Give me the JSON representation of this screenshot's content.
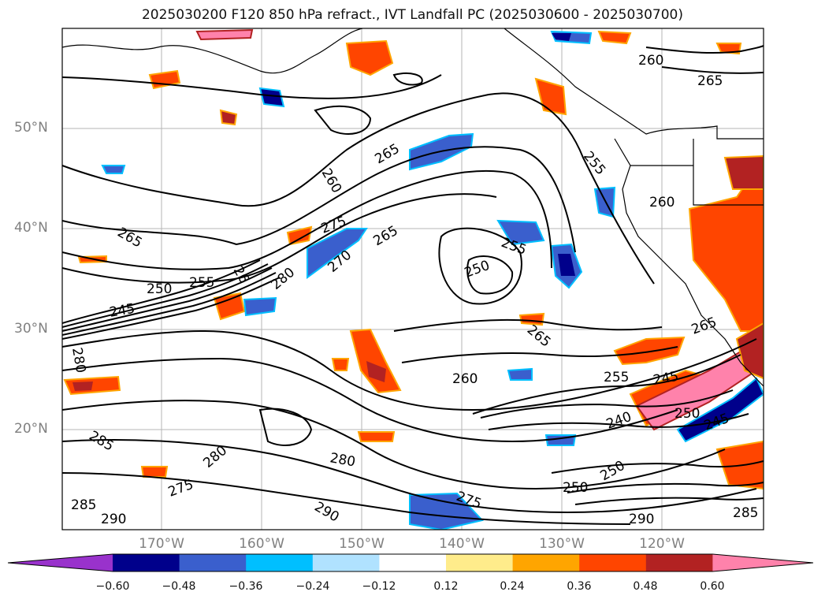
{
  "title": "2025030200 F120 850 hPa refract., IVT Landfall PC (2025030600 - 2025030700)",
  "latitude_labels": [
    "50°N",
    "40°N",
    "30°N",
    "20°N"
  ],
  "longitude_labels": [
    "170°W",
    "160°W",
    "150°W",
    "140°W",
    "130°W",
    "120°W"
  ],
  "colorbar": {
    "ticks": [
      "−0.60",
      "−0.48",
      "−0.36",
      "−0.24",
      "−0.12",
      "0.12",
      "0.24",
      "0.36",
      "0.48",
      "0.60"
    ],
    "colors": [
      "#9932cc",
      "#00008b",
      "#3a5fcd",
      "#00bfff",
      "#b0e2ff",
      "#ffffff",
      "#ffec8b",
      "#ffa500",
      "#ff4500",
      "#b22222",
      "#ff82ab"
    ]
  },
  "contour_labels": [
    "260",
    "265",
    "260",
    "255",
    "265",
    "260",
    "265",
    "275",
    "265",
    "255",
    "250",
    "255",
    "270",
    "26",
    "280",
    "245",
    "250",
    "265",
    "280",
    "260",
    "255",
    "245",
    "240",
    "250",
    "285",
    "280",
    "280",
    "275",
    "290",
    "275",
    "250",
    "250",
    "290",
    "285",
    "290",
    "285",
    "265",
    "245"
  ]
}
